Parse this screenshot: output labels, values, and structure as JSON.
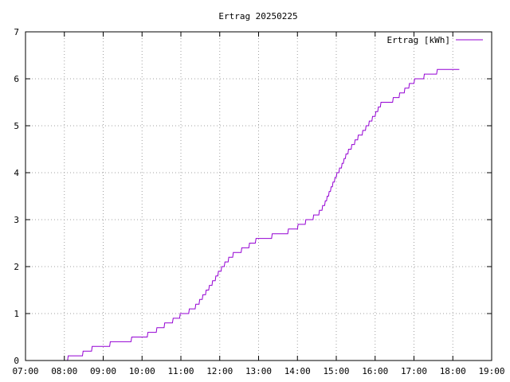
{
  "chart_data": {
    "type": "line",
    "title": "Ertrag 20250225",
    "xlabel": "",
    "ylabel": "",
    "x_ticks": [
      "07:00",
      "08:00",
      "09:00",
      "10:00",
      "11:00",
      "12:00",
      "13:00",
      "14:00",
      "15:00",
      "16:00",
      "17:00",
      "18:00",
      "19:00"
    ],
    "y_ticks": [
      "0",
      "1",
      "2",
      "3",
      "4",
      "5",
      "6",
      "7"
    ],
    "xlim": [
      "07:00",
      "19:00"
    ],
    "ylim": [
      0,
      7
    ],
    "grid": true,
    "legend_position": "top-right",
    "series": [
      {
        "name": "Ertrag [kWh]",
        "color": "#9400d3",
        "step": true,
        "points": [
          [
            "08:05",
            0.0
          ],
          [
            "08:06",
            0.1
          ],
          [
            "08:28",
            0.1
          ],
          [
            "08:29",
            0.2
          ],
          [
            "08:42",
            0.2
          ],
          [
            "08:43",
            0.3
          ],
          [
            "09:10",
            0.3
          ],
          [
            "09:11",
            0.4
          ],
          [
            "09:43",
            0.4
          ],
          [
            "09:44",
            0.5
          ],
          [
            "10:08",
            0.5
          ],
          [
            "10:09",
            0.6
          ],
          [
            "10:22",
            0.6
          ],
          [
            "10:23",
            0.7
          ],
          [
            "10:34",
            0.7
          ],
          [
            "10:35",
            0.8
          ],
          [
            "10:47",
            0.8
          ],
          [
            "10:48",
            0.9
          ],
          [
            "10:58",
            0.9
          ],
          [
            "10:59",
            1.0
          ],
          [
            "11:12",
            1.0
          ],
          [
            "11:13",
            1.1
          ],
          [
            "11:22",
            1.1
          ],
          [
            "11:23",
            1.2
          ],
          [
            "11:28",
            1.2
          ],
          [
            "11:29",
            1.3
          ],
          [
            "11:33",
            1.3
          ],
          [
            "11:34",
            1.4
          ],
          [
            "11:38",
            1.4
          ],
          [
            "11:39",
            1.5
          ],
          [
            "11:43",
            1.5
          ],
          [
            "11:44",
            1.6
          ],
          [
            "11:48",
            1.6
          ],
          [
            "11:49",
            1.7
          ],
          [
            "11:53",
            1.7
          ],
          [
            "11:54",
            1.8
          ],
          [
            "11:57",
            1.8
          ],
          [
            "11:58",
            1.9
          ],
          [
            "12:02",
            1.9
          ],
          [
            "12:03",
            2.0
          ],
          [
            "12:07",
            2.0
          ],
          [
            "12:08",
            2.1
          ],
          [
            "12:13",
            2.1
          ],
          [
            "12:14",
            2.2
          ],
          [
            "12:20",
            2.2
          ],
          [
            "12:21",
            2.3
          ],
          [
            "12:33",
            2.3
          ],
          [
            "12:34",
            2.4
          ],
          [
            "12:45",
            2.4
          ],
          [
            "12:46",
            2.5
          ],
          [
            "12:55",
            2.5
          ],
          [
            "12:56",
            2.6
          ],
          [
            "13:20",
            2.6
          ],
          [
            "13:21",
            2.7
          ],
          [
            "13:45",
            2.7
          ],
          [
            "13:46",
            2.8
          ],
          [
            "14:00",
            2.8
          ],
          [
            "14:01",
            2.9
          ],
          [
            "14:12",
            2.9
          ],
          [
            "14:13",
            3.0
          ],
          [
            "14:24",
            3.0
          ],
          [
            "14:25",
            3.1
          ],
          [
            "14:33",
            3.1
          ],
          [
            "14:34",
            3.2
          ],
          [
            "14:38",
            3.2
          ],
          [
            "14:39",
            3.3
          ],
          [
            "14:42",
            3.3
          ],
          [
            "14:43",
            3.4
          ],
          [
            "14:45",
            3.4
          ],
          [
            "14:46",
            3.5
          ],
          [
            "14:48",
            3.5
          ],
          [
            "14:49",
            3.6
          ],
          [
            "14:51",
            3.6
          ],
          [
            "14:52",
            3.7
          ],
          [
            "14:54",
            3.7
          ],
          [
            "14:55",
            3.8
          ],
          [
            "14:57",
            3.8
          ],
          [
            "14:58",
            3.9
          ],
          [
            "15:00",
            3.9
          ],
          [
            "15:01",
            4.0
          ],
          [
            "15:04",
            4.0
          ],
          [
            "15:05",
            4.1
          ],
          [
            "15:08",
            4.1
          ],
          [
            "15:09",
            4.2
          ],
          [
            "15:11",
            4.2
          ],
          [
            "15:12",
            4.3
          ],
          [
            "15:14",
            4.3
          ],
          [
            "15:15",
            4.4
          ],
          [
            "15:18",
            4.4
          ],
          [
            "15:19",
            4.5
          ],
          [
            "15:23",
            4.5
          ],
          [
            "15:24",
            4.6
          ],
          [
            "15:28",
            4.6
          ],
          [
            "15:29",
            4.7
          ],
          [
            "15:33",
            4.7
          ],
          [
            "15:34",
            4.8
          ],
          [
            "15:40",
            4.8
          ],
          [
            "15:41",
            4.9
          ],
          [
            "15:45",
            4.9
          ],
          [
            "15:46",
            5.0
          ],
          [
            "15:50",
            5.0
          ],
          [
            "15:51",
            5.1
          ],
          [
            "15:55",
            5.1
          ],
          [
            "15:56",
            5.2
          ],
          [
            "16:00",
            5.2
          ],
          [
            "16:01",
            5.3
          ],
          [
            "16:04",
            5.3
          ],
          [
            "16:05",
            5.4
          ],
          [
            "16:08",
            5.4
          ],
          [
            "16:09",
            5.5
          ],
          [
            "16:27",
            5.5
          ],
          [
            "16:28",
            5.6
          ],
          [
            "16:37",
            5.6
          ],
          [
            "16:38",
            5.7
          ],
          [
            "16:45",
            5.7
          ],
          [
            "16:46",
            5.8
          ],
          [
            "16:52",
            5.8
          ],
          [
            "16:53",
            5.9
          ],
          [
            "17:00",
            5.9
          ],
          [
            "17:01",
            6.0
          ],
          [
            "17:15",
            6.0
          ],
          [
            "17:16",
            6.1
          ],
          [
            "17:35",
            6.1
          ],
          [
            "17:36",
            6.2
          ],
          [
            "18:10",
            6.2
          ]
        ]
      }
    ]
  }
}
